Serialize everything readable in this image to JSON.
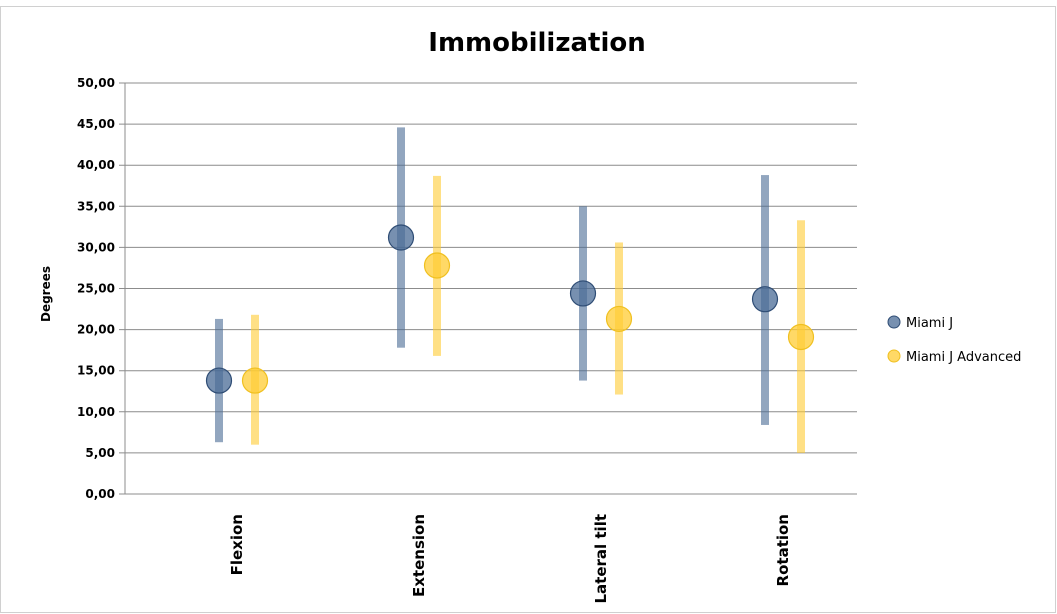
{
  "chart_data": {
    "type": "scatter",
    "title": "Immobilization",
    "xlabel": "",
    "ylabel": "Degrees",
    "ylim": [
      0,
      50
    ],
    "yticks": [
      "0,00",
      "5,00",
      "10,00",
      "15,00",
      "20,00",
      "25,00",
      "30,00",
      "35,00",
      "40,00",
      "45,00",
      "50,00"
    ],
    "categories": [
      "Flexion",
      "Extension",
      "Lateral tilt",
      "Rotation"
    ],
    "grid": true,
    "legend_position": "right",
    "series": [
      {
        "name": "Miami J",
        "color": "#4a6b95",
        "values": [
          13.8,
          31.2,
          24.4,
          23.7
        ],
        "low": [
          6.3,
          17.8,
          13.8,
          8.4
        ],
        "high": [
          21.3,
          44.6,
          35.0,
          38.8
        ]
      },
      {
        "name": "Miami J Advanced",
        "color": "#ffcc33",
        "values": [
          13.8,
          27.8,
          21.3,
          19.1
        ],
        "low": [
          6.0,
          16.8,
          12.1,
          5.0
        ],
        "high": [
          21.8,
          38.7,
          30.6,
          33.3
        ]
      }
    ]
  }
}
